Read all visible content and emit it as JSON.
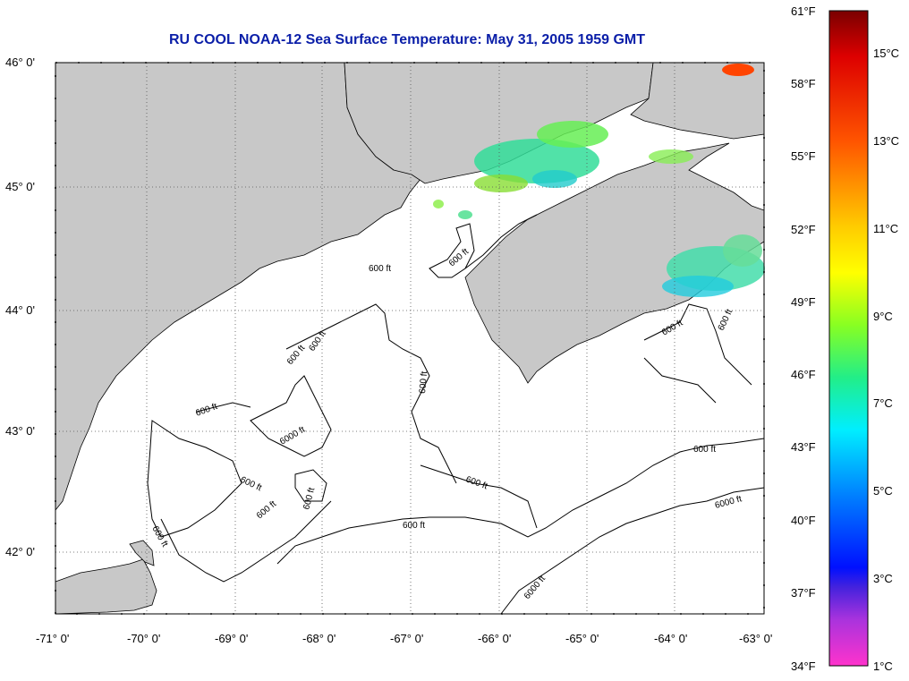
{
  "title": "RU COOL  NOAA-12  Sea Surface Temperature:  May 31, 2005 1959 GMT",
  "lat_ticks": [
    "46° 0'",
    "45° 0'",
    "44° 0'",
    "43° 0'",
    "42° 0'"
  ],
  "lon_ticks": [
    "-71° 0'",
    "-70° 0'",
    "-69° 0'",
    "-68° 0'",
    "-67° 0'",
    "-66° 0'",
    "-65° 0'",
    "-64° 0'",
    "-63° 0'"
  ],
  "contour_labels": [
    "600 ft",
    "600 ft",
    "600 ft",
    "600 ft",
    "600 ft",
    "600 ft",
    "600 ft",
    "600 ft",
    "600 ft",
    "600 ft",
    "600 ft",
    "600 ft",
    "600 ft",
    "600 ft",
    "600 ft",
    "6000 ft",
    "6000 ft",
    "6000 ft"
  ],
  "colorbar": {
    "fahrenheit": [
      "61°F",
      "58°F",
      "55°F",
      "52°F",
      "49°F",
      "46°F",
      "43°F",
      "40°F",
      "37°F",
      "34°F"
    ],
    "celsius": [
      "15°C",
      "13°C",
      "11°C",
      "9°C",
      "7°C",
      "5°C",
      "3°C",
      "1°C"
    ],
    "colors": {
      "top": "#8b0000",
      "red": "#ff2a00",
      "orange": "#ff9900",
      "yellow": "#ffff00",
      "green": "#2ee66a",
      "cyan": "#00e6ff",
      "blue": "#0030ff",
      "purple": "#7a2ad6",
      "magenta": "#ff33cc"
    }
  },
  "land_color": "#c8c8c8"
}
